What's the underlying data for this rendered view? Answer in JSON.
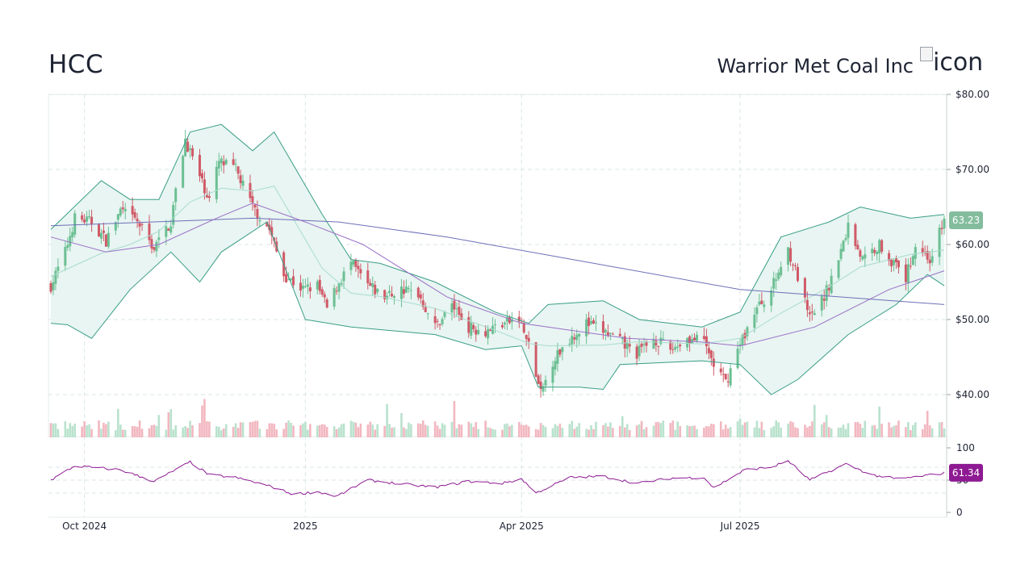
{
  "header": {
    "ticker": "HCC",
    "company": "Warrior Met Coal Inc",
    "logo_alt": "icon"
  },
  "colors": {
    "up": "#6cbf93",
    "down": "#d05a68",
    "volume_up": "#b9e2cd",
    "volume_down": "#f2b7c0",
    "band_fill": "#e8f5f2",
    "band_line": "#3a9e86",
    "sma_50": "#9a6fc7",
    "sma_200": "#6d6fb8",
    "rsi": "#8e1a93",
    "price_tag": "#84bd9e",
    "rsi_tag": "#8e1a93",
    "grid": "#d9e6e4"
  },
  "chart_data": {
    "type": "candlestick",
    "x_ticks": [
      {
        "date": "2024-10-01",
        "label": "Oct 2024"
      },
      {
        "date": "2025-01-01",
        "label": "2025"
      },
      {
        "date": "2025-04-01",
        "label": "Apr 2025"
      },
      {
        "date": "2025-07-01",
        "label": "Jul 2025"
      }
    ],
    "price_axis": {
      "ticks": [
        "$80.00",
        "$70.00",
        "$60.00",
        "$50.00",
        "$40.00"
      ],
      "range": [
        35,
        80
      ],
      "last_price": "63.23"
    },
    "rsi_axis": {
      "ticks": [
        "100",
        "50",
        "0"
      ],
      "range": [
        0,
        100
      ],
      "last_value": "61.34"
    },
    "price_path": [
      [
        "2024-09-17",
        54.5
      ],
      [
        "2024-09-23",
        59.0
      ],
      [
        "2024-09-27",
        63.5
      ],
      [
        "2024-10-04",
        63.0
      ],
      [
        "2024-10-10",
        60.5
      ],
      [
        "2024-10-16",
        64.5
      ],
      [
        "2024-10-23",
        63.0
      ],
      [
        "2024-10-30",
        59.5
      ],
      [
        "2024-11-06",
        63.0
      ],
      [
        "2024-11-08",
        67.0
      ],
      [
        "2024-11-12",
        74.0
      ],
      [
        "2024-11-18",
        69.0
      ],
      [
        "2024-11-22",
        66.0
      ],
      [
        "2024-11-26",
        71.0
      ],
      [
        "2024-12-03",
        70.0
      ],
      [
        "2024-12-10",
        65.0
      ],
      [
        "2024-12-17",
        62.0
      ],
      [
        "2024-12-23",
        56.0
      ],
      [
        "2024-12-31",
        54.0
      ],
      [
        "2025-01-06",
        54.5
      ],
      [
        "2025-01-10",
        51.5
      ],
      [
        "2025-01-15",
        55.0
      ],
      [
        "2025-01-20",
        57.5
      ],
      [
        "2025-01-27",
        54.5
      ],
      [
        "2025-02-03",
        53.0
      ],
      [
        "2025-02-10",
        54.0
      ],
      [
        "2025-02-17",
        53.5
      ],
      [
        "2025-02-24",
        49.0
      ],
      [
        "2025-03-03",
        52.0
      ],
      [
        "2025-03-10",
        49.0
      ],
      [
        "2025-03-17",
        48.5
      ],
      [
        "2025-03-24",
        49.5
      ],
      [
        "2025-03-31",
        50.0
      ],
      [
        "2025-04-04",
        46.5
      ],
      [
        "2025-04-09",
        40.0
      ],
      [
        "2025-04-14",
        44.5
      ],
      [
        "2025-04-21",
        47.5
      ],
      [
        "2025-04-28",
        49.5
      ],
      [
        "2025-05-05",
        48.5
      ],
      [
        "2025-05-12",
        47.0
      ],
      [
        "2025-05-19",
        45.5
      ],
      [
        "2025-05-26",
        47.5
      ],
      [
        "2025-06-02",
        46.0
      ],
      [
        "2025-06-09",
        47.5
      ],
      [
        "2025-06-16",
        47.0
      ],
      [
        "2025-06-20",
        44.0
      ],
      [
        "2025-06-25",
        41.5
      ],
      [
        "2025-06-30",
        46.0
      ],
      [
        "2025-07-07",
        51.0
      ],
      [
        "2025-07-14",
        54.0
      ],
      [
        "2025-07-21",
        59.5
      ],
      [
        "2025-07-25",
        55.5
      ],
      [
        "2025-07-30",
        50.0
      ],
      [
        "2025-08-05",
        53.0
      ],
      [
        "2025-08-11",
        58.0
      ],
      [
        "2025-08-15",
        62.5
      ],
      [
        "2025-08-21",
        58.0
      ],
      [
        "2025-08-28",
        60.0
      ],
      [
        "2025-09-04",
        57.0
      ],
      [
        "2025-09-08",
        55.5
      ],
      [
        "2025-09-12",
        60.0
      ],
      [
        "2025-09-18",
        58.0
      ],
      [
        "2025-09-24",
        63.2
      ]
    ],
    "rsi_path": [
      [
        "2024-09-17",
        50
      ],
      [
        "2024-09-27",
        72
      ],
      [
        "2024-10-16",
        66
      ],
      [
        "2024-10-30",
        48
      ],
      [
        "2024-11-14",
        78
      ],
      [
        "2024-11-22",
        58
      ],
      [
        "2024-12-03",
        54
      ],
      [
        "2024-12-16",
        42
      ],
      [
        "2024-12-27",
        28
      ],
      [
        "2025-01-06",
        32
      ],
      [
        "2025-01-14",
        25
      ],
      [
        "2025-01-27",
        50
      ],
      [
        "2025-02-10",
        44
      ],
      [
        "2025-02-24",
        39
      ],
      [
        "2025-03-10",
        48
      ],
      [
        "2025-03-24",
        45
      ],
      [
        "2025-04-01",
        52
      ],
      [
        "2025-04-07",
        30
      ],
      [
        "2025-04-21",
        54
      ],
      [
        "2025-05-05",
        56
      ],
      [
        "2025-05-19",
        45
      ],
      [
        "2025-06-02",
        53
      ],
      [
        "2025-06-16",
        54
      ],
      [
        "2025-06-20",
        38
      ],
      [
        "2025-07-03",
        66
      ],
      [
        "2025-07-14",
        70
      ],
      [
        "2025-07-21",
        80
      ],
      [
        "2025-07-30",
        50
      ],
      [
        "2025-08-14",
        75
      ],
      [
        "2025-08-25",
        58
      ],
      [
        "2025-09-04",
        52
      ],
      [
        "2025-09-10",
        54
      ],
      [
        "2025-09-18",
        58
      ],
      [
        "2025-09-24",
        61
      ]
    ],
    "sma_200_path": [
      [
        "2024-09-17",
        62.5
      ],
      [
        "2024-12-10",
        63.5
      ],
      [
        "2025-01-15",
        63.0
      ],
      [
        "2025-03-01",
        61.0
      ],
      [
        "2025-05-01",
        57.5
      ],
      [
        "2025-07-01",
        54.0
      ],
      [
        "2025-09-24",
        52.0
      ]
    ],
    "sma_50_path": [
      [
        "2024-09-17",
        61.0
      ],
      [
        "2024-10-10",
        59.0
      ],
      [
        "2024-11-01",
        60.0
      ],
      [
        "2024-11-25",
        63.5
      ],
      [
        "2024-12-10",
        65.5
      ],
      [
        "2025-01-01",
        63.0
      ],
      [
        "2025-01-25",
        60.0
      ],
      [
        "2025-03-01",
        53.0
      ],
      [
        "2025-04-01",
        49.5
      ],
      [
        "2025-05-15",
        47.5
      ],
      [
        "2025-06-15",
        47.0
      ],
      [
        "2025-07-01",
        46.5
      ],
      [
        "2025-08-01",
        49.0
      ],
      [
        "2025-09-01",
        54.0
      ],
      [
        "2025-09-24",
        56.5
      ]
    ],
    "bb_upper_path": [
      [
        "2024-09-17",
        62.0
      ],
      [
        "2024-10-08",
        68.5
      ],
      [
        "2024-10-20",
        66.0
      ],
      [
        "2024-11-01",
        66.0
      ],
      [
        "2024-11-14",
        75.0
      ],
      [
        "2024-11-27",
        76.0
      ],
      [
        "2024-12-10",
        72.5
      ],
      [
        "2024-12-19",
        75.0
      ],
      [
        "2025-01-08",
        64.0
      ],
      [
        "2025-01-20",
        58.0
      ],
      [
        "2025-02-01",
        57.5
      ],
      [
        "2025-02-24",
        55.0
      ],
      [
        "2025-03-21",
        51.0
      ],
      [
        "2025-04-04",
        49.5
      ],
      [
        "2025-04-12",
        52.0
      ],
      [
        "2025-05-05",
        52.5
      ],
      [
        "2025-05-20",
        50.0
      ],
      [
        "2025-06-15",
        49.0
      ],
      [
        "2025-07-01",
        51.0
      ],
      [
        "2025-07-18",
        61.0
      ],
      [
        "2025-08-07",
        63.0
      ],
      [
        "2025-08-20",
        65.0
      ],
      [
        "2025-09-10",
        63.5
      ],
      [
        "2025-09-24",
        64.0
      ]
    ],
    "bb_lower_path": [
      [
        "2024-09-17",
        49.5
      ],
      [
        "2024-09-24",
        49.3
      ],
      [
        "2024-10-04",
        47.5
      ],
      [
        "2024-10-20",
        54.0
      ],
      [
        "2024-11-06",
        59.0
      ],
      [
        "2024-11-18",
        55.0
      ],
      [
        "2024-11-27",
        59.0
      ],
      [
        "2024-12-16",
        63.0
      ],
      [
        "2025-01-01",
        50.0
      ],
      [
        "2025-01-20",
        49.0
      ],
      [
        "2025-02-24",
        48.0
      ],
      [
        "2025-03-17",
        46.0
      ],
      [
        "2025-04-01",
        46.5
      ],
      [
        "2025-04-08",
        41.0
      ],
      [
        "2025-04-25",
        41.0
      ],
      [
        "2025-05-05",
        40.7
      ],
      [
        "2025-05-12",
        44.0
      ],
      [
        "2025-06-15",
        44.5
      ],
      [
        "2025-07-01",
        44.0
      ],
      [
        "2025-07-14",
        40.0
      ],
      [
        "2025-07-25",
        42.0
      ],
      [
        "2025-08-15",
        48.0
      ],
      [
        "2025-09-04",
        52.0
      ],
      [
        "2025-09-17",
        56.0
      ],
      [
        "2025-09-24",
        54.5
      ]
    ]
  }
}
